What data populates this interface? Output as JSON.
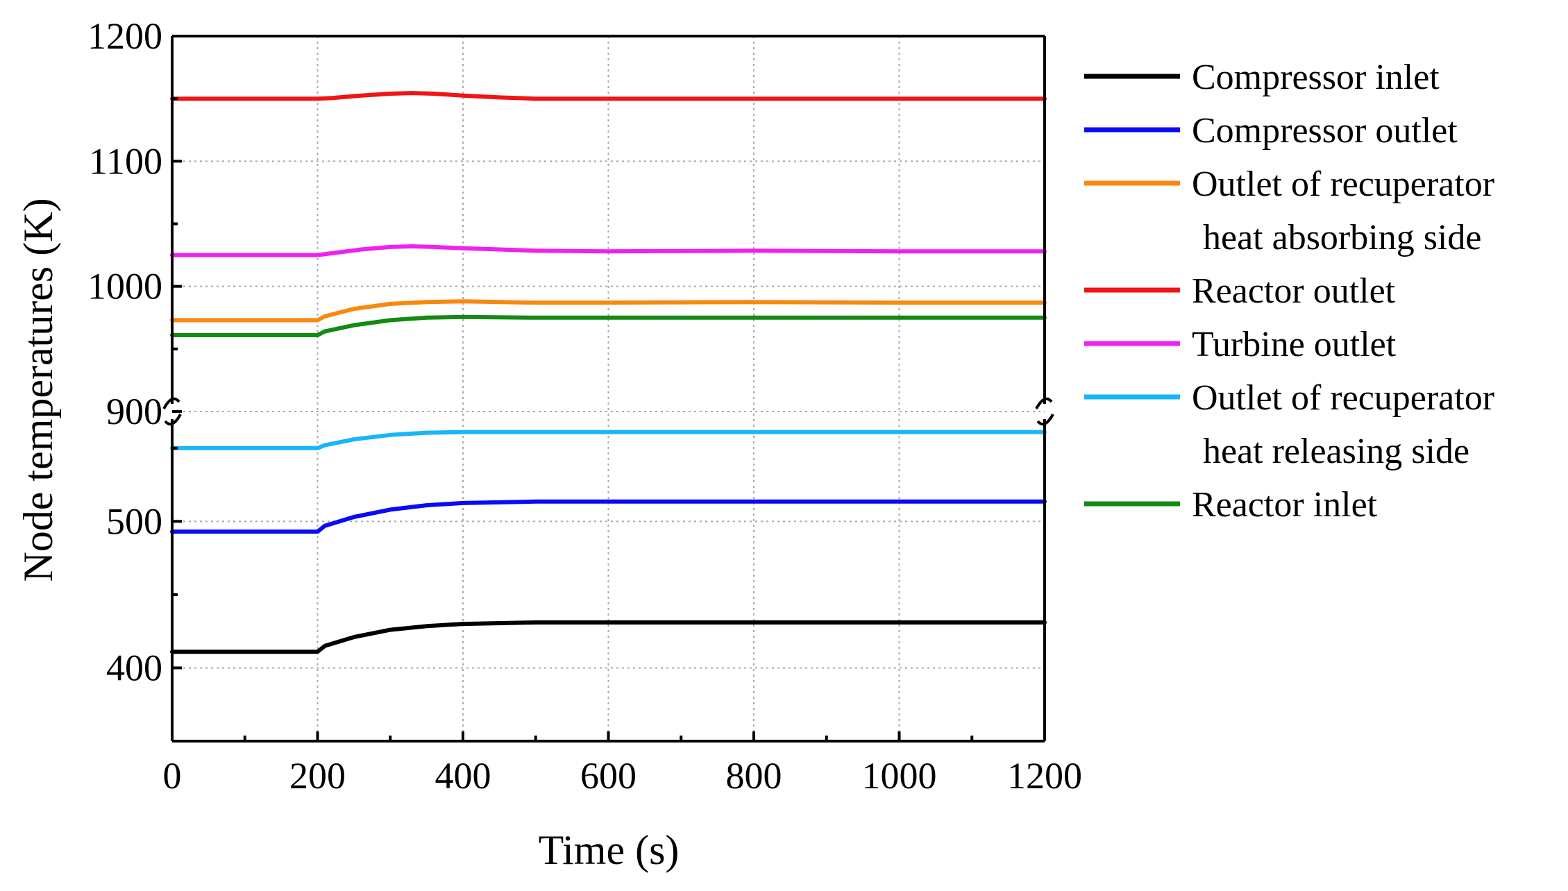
{
  "chart_data": {
    "type": "line",
    "title": "",
    "xlabel": "Time (s)",
    "ylabel": "Node temperatures (K)",
    "xlim": [
      0,
      1200
    ],
    "x_ticks": [
      "0",
      "200",
      "400",
      "600",
      "800",
      "1000",
      "1200"
    ],
    "y_axis_break": true,
    "upper_ylim": [
      900,
      1200
    ],
    "upper_y_ticks": [
      "900",
      "1000",
      "1100",
      "1200"
    ],
    "lower_ylim": [
      350,
      575
    ],
    "lower_y_ticks": [
      "400",
      "500"
    ],
    "grid": true,
    "legend_position": "right",
    "series": [
      {
        "name": "Compressor inlet",
        "color": "#000000",
        "panel": "lower",
        "x": [
          0,
          200,
          210,
          250,
          300,
          350,
          400,
          500,
          600,
          800,
          1000,
          1200
        ],
        "values": [
          411,
          411,
          415,
          421,
          426,
          428.5,
          430,
          431,
          431,
          431,
          431,
          431
        ]
      },
      {
        "name": "Compressor outlet",
        "color": "#0a0af5",
        "panel": "lower",
        "x": [
          0,
          200,
          210,
          250,
          300,
          350,
          400,
          500,
          600,
          800,
          1000,
          1200
        ],
        "values": [
          493,
          493,
          497,
          503,
          508,
          511,
          512.5,
          513.5,
          513.5,
          513.5,
          513.5,
          513.5
        ]
      },
      {
        "name": [
          "Outlet of recuperator",
          "heat absorbing side"
        ],
        "color": "#f7890f",
        "panel": "upper",
        "x": [
          0,
          200,
          210,
          250,
          300,
          350,
          400,
          500,
          600,
          800,
          1000,
          1200
        ],
        "values": [
          973,
          973,
          976,
          982,
          986,
          987.5,
          988,
          987,
          987,
          987.5,
          987,
          987
        ]
      },
      {
        "name": "Reactor outlet",
        "color": "#f01414",
        "panel": "upper",
        "x": [
          0,
          200,
          220,
          260,
          300,
          330,
          360,
          400,
          450,
          500,
          600,
          800,
          1000,
          1200
        ],
        "values": [
          1150,
          1150,
          1150.5,
          1152.5,
          1154,
          1154.5,
          1154,
          1152.5,
          1151,
          1150,
          1150,
          1150,
          1150,
          1150
        ]
      },
      {
        "name": "Turbine outlet",
        "color": "#f020f0",
        "panel": "upper",
        "x": [
          0,
          200,
          220,
          260,
          300,
          330,
          360,
          400,
          450,
          500,
          600,
          800,
          1000,
          1200
        ],
        "values": [
          1025,
          1025,
          1026.5,
          1029.5,
          1031.5,
          1032,
          1031.5,
          1030.5,
          1029.5,
          1028.5,
          1028,
          1028.5,
          1028,
          1028
        ]
      },
      {
        "name": [
          "Outlet of recuperator",
          "heat releasing side"
        ],
        "color": "#19b6f5",
        "panel": "lower",
        "x": [
          0,
          200,
          210,
          250,
          300,
          350,
          400,
          500,
          600,
          800,
          1000,
          1200
        ],
        "values": [
          550,
          550,
          552,
          556,
          559,
          560.5,
          561,
          561,
          561,
          561,
          561,
          561
        ]
      },
      {
        "name": "Reactor inlet",
        "color": "#148a14",
        "panel": "upper",
        "x": [
          0,
          200,
          210,
          250,
          300,
          350,
          400,
          500,
          600,
          800,
          1000,
          1200
        ],
        "values": [
          961,
          961,
          964,
          969,
          973,
          975,
          975.5,
          975,
          975,
          975,
          975,
          975
        ]
      }
    ]
  }
}
